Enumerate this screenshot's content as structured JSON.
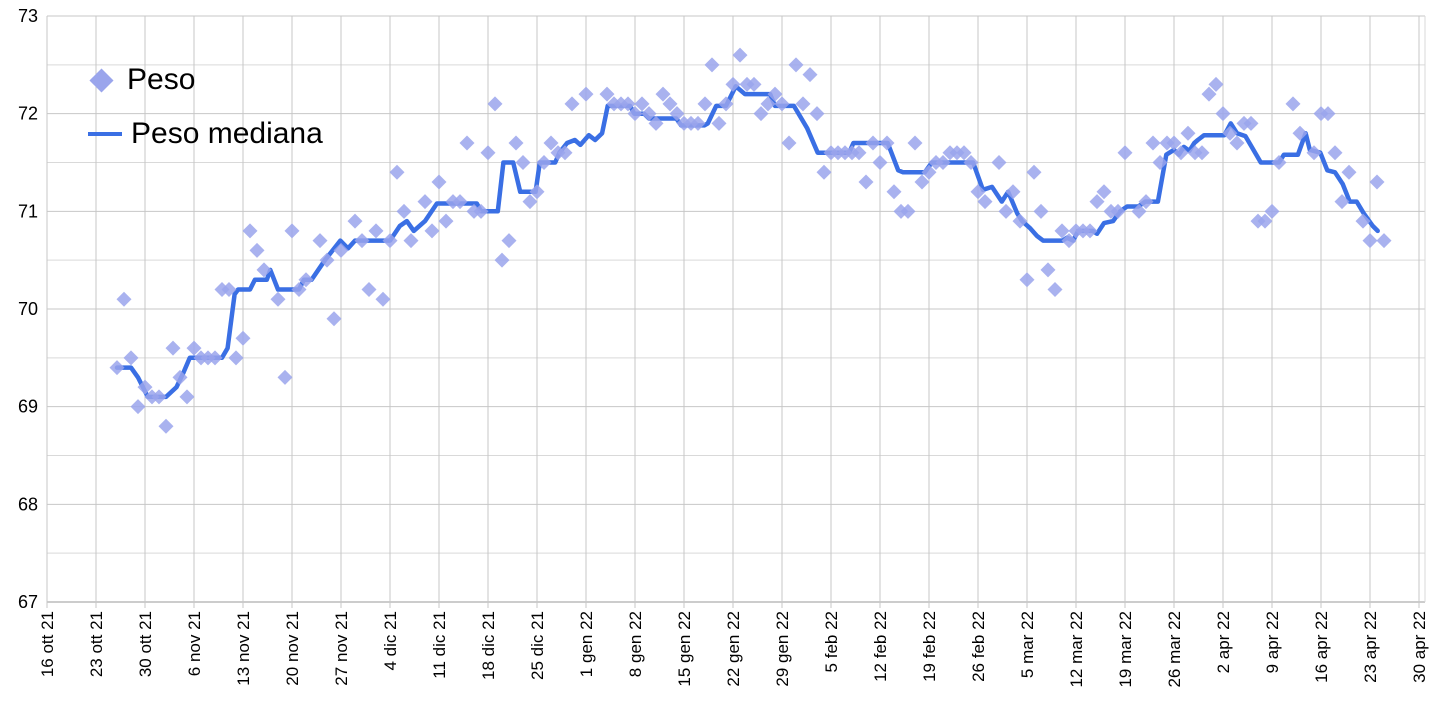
{
  "chart_data": {
    "type": "scatter+line",
    "title": "",
    "legend_position": "top-left-inside",
    "grid": true,
    "colors": {
      "scatter": "#9aa5ec",
      "line": "#3a6fe4",
      "grid_major": "#c7c7c7",
      "grid_minor": "#d9d9d9",
      "axis_line": "#999999",
      "tick_text": "#000000"
    },
    "y_axis": {
      "min": 67,
      "max": 73,
      "major_ticks": [
        67,
        68,
        69,
        70,
        71,
        72,
        73
      ],
      "minor_step": 0.5
    },
    "x_axis": {
      "start_label": "16 ott 21",
      "days_per_tick": 7,
      "total_days": 196,
      "tick_labels": [
        "16 ott 21",
        "23 ott 21",
        "30 ott 21",
        "6 nov 21",
        "13 nov 21",
        "20 nov 21",
        "27 nov 21",
        "4 dic 21",
        "11 dic 21",
        "18 dic 21",
        "25 dic 21",
        "1 gen 22",
        "8 gen 22",
        "15 gen 22",
        "22 gen 22",
        "29 gen 22",
        "5 feb 22",
        "12 feb 22",
        "19 feb 22",
        "26 feb 22",
        "5 mar 22",
        "12 mar 22",
        "19 mar 22",
        "26 mar 22",
        "2 apr 22",
        "9 apr 22",
        "16 apr 22",
        "23 apr 22",
        "30 apr 22"
      ]
    },
    "series": [
      {
        "name": "Peso",
        "type": "scatter",
        "marker": "diamond",
        "points": [
          [
            10,
            69.4
          ],
          [
            11,
            70.1
          ],
          [
            12,
            69.5
          ],
          [
            13,
            69.0
          ],
          [
            14,
            69.2
          ],
          [
            15,
            69.1
          ],
          [
            16,
            69.1
          ],
          [
            17,
            68.8
          ],
          [
            18,
            69.6
          ],
          [
            19,
            69.3
          ],
          [
            20,
            69.1
          ],
          [
            21,
            69.6
          ],
          [
            22,
            69.5
          ],
          [
            23,
            69.5
          ],
          [
            24,
            69.5
          ],
          [
            25,
            70.2
          ],
          [
            26,
            70.2
          ],
          [
            27,
            69.5
          ],
          [
            28,
            69.7
          ],
          [
            29,
            70.8
          ],
          [
            30,
            70.6
          ],
          [
            31,
            70.4
          ],
          [
            33,
            70.1
          ],
          [
            34,
            69.3
          ],
          [
            35,
            70.8
          ],
          [
            36,
            70.2
          ],
          [
            37,
            70.3
          ],
          [
            39,
            70.7
          ],
          [
            40,
            70.5
          ],
          [
            41,
            69.9
          ],
          [
            42,
            70.6
          ],
          [
            44,
            70.9
          ],
          [
            45,
            70.7
          ],
          [
            46,
            70.2
          ],
          [
            47,
            70.8
          ],
          [
            48,
            70.1
          ],
          [
            49,
            70.7
          ],
          [
            50,
            71.4
          ],
          [
            51,
            71.0
          ],
          [
            52,
            70.7
          ],
          [
            54,
            71.1
          ],
          [
            55,
            70.8
          ],
          [
            56,
            71.3
          ],
          [
            57,
            70.9
          ],
          [
            58,
            71.1
          ],
          [
            59,
            71.1
          ],
          [
            60,
            71.7
          ],
          [
            61,
            71.0
          ],
          [
            62,
            71.0
          ],
          [
            63,
            71.6
          ],
          [
            64,
            72.1
          ],
          [
            65,
            70.5
          ],
          [
            66,
            70.7
          ],
          [
            67,
            71.7
          ],
          [
            68,
            71.5
          ],
          [
            69,
            71.1
          ],
          [
            70,
            71.2
          ],
          [
            71,
            71.5
          ],
          [
            72,
            71.7
          ],
          [
            73,
            71.6
          ],
          [
            74,
            71.6
          ],
          [
            75,
            72.1
          ],
          [
            77,
            72.2
          ],
          [
            80,
            72.2
          ],
          [
            81,
            72.1
          ],
          [
            82,
            72.1
          ],
          [
            83,
            72.1
          ],
          [
            84,
            72.0
          ],
          [
            85,
            72.1
          ],
          [
            86,
            72.0
          ],
          [
            87,
            71.9
          ],
          [
            88,
            72.2
          ],
          [
            89,
            72.1
          ],
          [
            90,
            72.0
          ],
          [
            91,
            71.9
          ],
          [
            92,
            71.9
          ],
          [
            93,
            71.9
          ],
          [
            94,
            72.1
          ],
          [
            95,
            72.5
          ],
          [
            96,
            71.9
          ],
          [
            97,
            72.1
          ],
          [
            98,
            72.3
          ],
          [
            99,
            72.6
          ],
          [
            100,
            72.3
          ],
          [
            101,
            72.3
          ],
          [
            102,
            72.0
          ],
          [
            103,
            72.1
          ],
          [
            104,
            72.2
          ],
          [
            105,
            72.1
          ],
          [
            106,
            71.7
          ],
          [
            107,
            72.5
          ],
          [
            108,
            72.1
          ],
          [
            109,
            72.4
          ],
          [
            110,
            72.0
          ],
          [
            111,
            71.4
          ],
          [
            112,
            71.6
          ],
          [
            113,
            71.6
          ],
          [
            114,
            71.6
          ],
          [
            115,
            71.6
          ],
          [
            116,
            71.6
          ],
          [
            117,
            71.3
          ],
          [
            118,
            71.7
          ],
          [
            119,
            71.5
          ],
          [
            120,
            71.7
          ],
          [
            121,
            71.2
          ],
          [
            122,
            71.0
          ],
          [
            123,
            71.0
          ],
          [
            124,
            71.7
          ],
          [
            125,
            71.3
          ],
          [
            126,
            71.4
          ],
          [
            127,
            71.5
          ],
          [
            128,
            71.5
          ],
          [
            129,
            71.6
          ],
          [
            130,
            71.6
          ],
          [
            131,
            71.6
          ],
          [
            132,
            71.5
          ],
          [
            133,
            71.2
          ],
          [
            134,
            71.1
          ],
          [
            136,
            71.5
          ],
          [
            137,
            71.0
          ],
          [
            138,
            71.2
          ],
          [
            139,
            70.9
          ],
          [
            140,
            70.3
          ],
          [
            141,
            71.4
          ],
          [
            142,
            71.0
          ],
          [
            143,
            70.4
          ],
          [
            144,
            70.2
          ],
          [
            145,
            70.8
          ],
          [
            146,
            70.7
          ],
          [
            147,
            70.8
          ],
          [
            148,
            70.8
          ],
          [
            149,
            70.8
          ],
          [
            150,
            71.1
          ],
          [
            151,
            71.2
          ],
          [
            152,
            71.0
          ],
          [
            153,
            71.0
          ],
          [
            154,
            71.6
          ],
          [
            156,
            71.0
          ],
          [
            157,
            71.1
          ],
          [
            158,
            71.7
          ],
          [
            159,
            71.5
          ],
          [
            160,
            71.7
          ],
          [
            161,
            71.7
          ],
          [
            162,
            71.6
          ],
          [
            163,
            71.8
          ],
          [
            164,
            71.6
          ],
          [
            165,
            71.6
          ],
          [
            166,
            72.2
          ],
          [
            167,
            72.3
          ],
          [
            168,
            72.0
          ],
          [
            169,
            71.8
          ],
          [
            170,
            71.7
          ],
          [
            171,
            71.9
          ],
          [
            172,
            71.9
          ],
          [
            173,
            70.9
          ],
          [
            174,
            70.9
          ],
          [
            175,
            71.0
          ],
          [
            176,
            71.5
          ],
          [
            178,
            72.1
          ],
          [
            179,
            71.8
          ],
          [
            181,
            71.6
          ],
          [
            182,
            72.0
          ],
          [
            183,
            72.0
          ],
          [
            184,
            71.6
          ],
          [
            185,
            71.1
          ],
          [
            186,
            71.4
          ],
          [
            188,
            70.9
          ],
          [
            189,
            70.7
          ],
          [
            190,
            71.3
          ],
          [
            191,
            70.7
          ]
        ]
      },
      {
        "name": "Peso mediana",
        "type": "line",
        "points": [
          [
            10,
            69.4
          ],
          [
            12,
            69.4
          ],
          [
            13,
            69.3
          ],
          [
            14.4,
            69.1
          ],
          [
            17,
            69.1
          ],
          [
            18.5,
            69.2
          ],
          [
            19.5,
            69.35
          ],
          [
            20.4,
            69.5
          ],
          [
            25,
            69.5
          ],
          [
            25.8,
            69.6
          ],
          [
            26.8,
            70.15
          ],
          [
            27.3,
            70.2
          ],
          [
            29,
            70.2
          ],
          [
            29.7,
            70.3
          ],
          [
            31.4,
            70.3
          ],
          [
            31.9,
            70.4
          ],
          [
            33,
            70.2
          ],
          [
            36,
            70.2
          ],
          [
            36.7,
            70.3
          ],
          [
            37.8,
            70.3
          ],
          [
            39.7,
            70.5
          ],
          [
            41.9,
            70.7
          ],
          [
            43,
            70.62
          ],
          [
            44,
            70.7
          ],
          [
            49,
            70.7
          ],
          [
            50.4,
            70.85
          ],
          [
            51.4,
            70.9
          ],
          [
            52.4,
            70.8
          ],
          [
            54,
            70.9
          ],
          [
            55.7,
            71.08
          ],
          [
            61.4,
            71.08
          ],
          [
            62,
            71.0
          ],
          [
            64.4,
            71.0
          ],
          [
            65.2,
            71.5
          ],
          [
            66.6,
            71.5
          ],
          [
            67.6,
            71.2
          ],
          [
            69.8,
            71.2
          ],
          [
            70.4,
            71.5
          ],
          [
            72.6,
            71.5
          ],
          [
            73.2,
            71.6
          ],
          [
            74.3,
            71.7
          ],
          [
            75.4,
            71.73
          ],
          [
            76.2,
            71.68
          ],
          [
            77.4,
            71.78
          ],
          [
            78.3,
            71.73
          ],
          [
            79.3,
            71.8
          ],
          [
            80.1,
            72.08
          ],
          [
            83.3,
            72.08
          ],
          [
            83.9,
            72.0
          ],
          [
            85.3,
            72.0
          ],
          [
            86,
            71.95
          ],
          [
            89.9,
            71.95
          ],
          [
            90.6,
            71.88
          ],
          [
            93.9,
            71.88
          ],
          [
            94.4,
            71.9
          ],
          [
            95.6,
            72.08
          ],
          [
            97,
            72.08
          ],
          [
            98.4,
            72.28
          ],
          [
            99.7,
            72.2
          ],
          [
            103.3,
            72.2
          ],
          [
            104,
            72.08
          ],
          [
            106.7,
            72.08
          ],
          [
            108.6,
            71.85
          ],
          [
            110.1,
            71.6
          ],
          [
            114.6,
            71.6
          ],
          [
            115.2,
            71.7
          ],
          [
            120.1,
            71.7
          ],
          [
            121.6,
            71.42
          ],
          [
            122.3,
            71.4
          ],
          [
            125.4,
            71.4
          ],
          [
            126.4,
            71.5
          ],
          [
            132.3,
            71.5
          ],
          [
            133.7,
            71.22
          ],
          [
            135,
            71.25
          ],
          [
            136.4,
            71.1
          ],
          [
            137.3,
            71.2
          ],
          [
            138.6,
            70.98
          ],
          [
            139.3,
            70.9
          ],
          [
            140.4,
            70.83
          ],
          [
            141.4,
            70.75
          ],
          [
            142.3,
            70.7
          ],
          [
            145.1,
            70.7
          ],
          [
            145.7,
            70.73
          ],
          [
            146.6,
            70.7
          ],
          [
            147.3,
            70.8
          ],
          [
            149.4,
            70.8
          ],
          [
            150,
            70.77
          ],
          [
            151,
            70.88
          ],
          [
            152.3,
            70.9
          ],
          [
            153.3,
            71.0
          ],
          [
            154.3,
            71.05
          ],
          [
            155.9,
            71.05
          ],
          [
            156.9,
            71.1
          ],
          [
            158.7,
            71.1
          ],
          [
            159.9,
            71.58
          ],
          [
            161,
            71.63
          ],
          [
            161.7,
            71.58
          ],
          [
            162.4,
            71.66
          ],
          [
            163.2,
            71.62
          ],
          [
            163.9,
            71.7
          ],
          [
            164.4,
            71.73
          ],
          [
            165.3,
            71.78
          ],
          [
            168.2,
            71.78
          ],
          [
            169.1,
            71.9
          ],
          [
            170,
            71.8
          ],
          [
            171.2,
            71.77
          ],
          [
            172.1,
            71.66
          ],
          [
            173.4,
            71.5
          ],
          [
            176,
            71.5
          ],
          [
            176.7,
            71.58
          ],
          [
            178.7,
            71.58
          ],
          [
            179.8,
            71.8
          ],
          [
            180.4,
            71.63
          ],
          [
            181.9,
            71.6
          ],
          [
            182.9,
            71.42
          ],
          [
            184,
            71.4
          ],
          [
            185.1,
            71.28
          ],
          [
            186.1,
            71.1
          ],
          [
            187.1,
            71.1
          ],
          [
            188.1,
            70.98
          ],
          [
            189.4,
            70.85
          ],
          [
            190.1,
            70.8
          ]
        ]
      }
    ]
  },
  "legend": {
    "peso_label": "Peso",
    "peso_mediana_label": "Peso mediana"
  }
}
